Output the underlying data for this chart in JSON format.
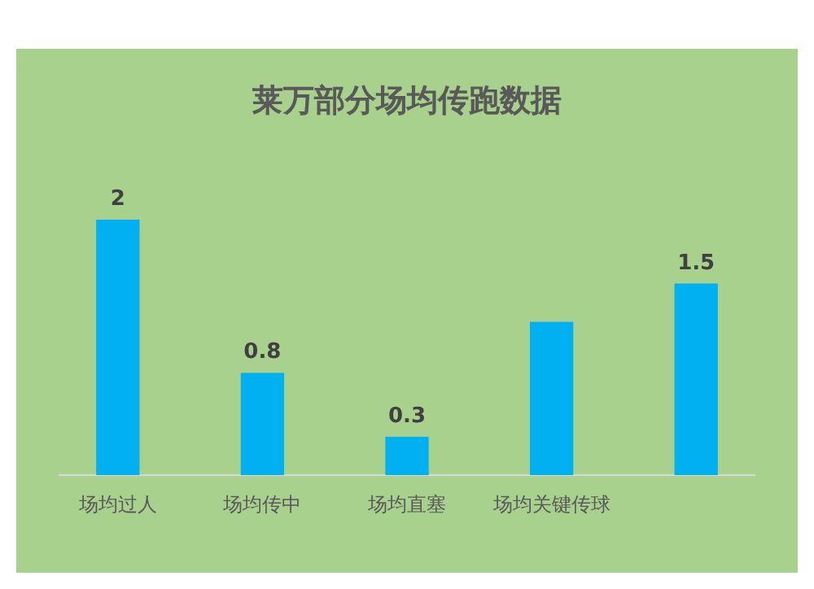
{
  "chart_data": {
    "type": "bar",
    "title": "莱万部分场均传跑数据",
    "categories": [
      "场均过人",
      "场均传中",
      "场均直塞",
      "场均关键传球",
      null
    ],
    "values": [
      2,
      0.8,
      0.3,
      1.2,
      1.5
    ],
    "color": "#00b0f0",
    "ylim": [
      0,
      2
    ],
    "value_labels": [
      "2",
      "0.8",
      "0.3",
      null,
      "1.5"
    ]
  }
}
